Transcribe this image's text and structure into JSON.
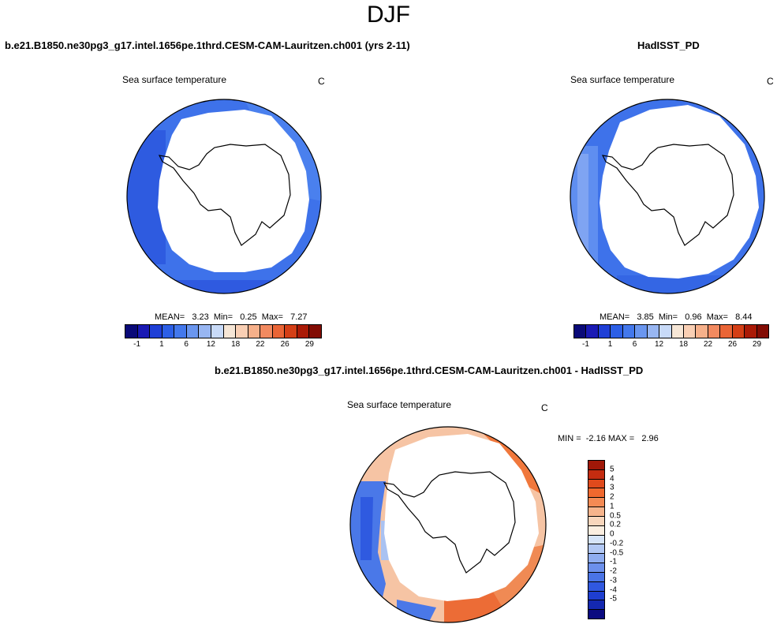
{
  "figure": {
    "title": "DJF"
  },
  "panels": {
    "model": {
      "case_title": "b.e21.B1850.ne30pg3_g17.intel.1656pe.1thrd.CESM-CAM-Lauritzen.ch001 (yrs 2-11)",
      "variable": "Sea surface temperature",
      "units": "C",
      "stats": "MEAN=   3.23  Min=   0.25  Max=   7.27"
    },
    "obs": {
      "case_title": "HadISST_PD",
      "variable": "Sea surface temperature",
      "units": "C",
      "stats": "MEAN=   3.85  Min=   0.96  Max=   8.44"
    },
    "diff": {
      "case_title": "b.e21.B1850.ne30pg3_g17.intel.1656pe.1thrd.CESM-CAM-Lauritzen.ch001 - HadISST_PD",
      "variable": "Sea surface temperature",
      "units": "C",
      "stats": "MIN =  -2.16 MAX =   2.96"
    }
  },
  "colorbars": {
    "sst": {
      "colors": [
        "#0a0a78",
        "#1a1ab4",
        "#1f3fd6",
        "#2c5fe6",
        "#4378ec",
        "#6a96ef",
        "#98b6f2",
        "#c8daf8",
        "#f6e6d6",
        "#f9cfb4",
        "#f6b08a",
        "#f28a60",
        "#ea6536",
        "#d43f16",
        "#aa1a06",
        "#820c04"
      ],
      "tick_labels": [
        "-1",
        "1",
        "6",
        "12",
        "18",
        "22",
        "26",
        "29"
      ]
    },
    "diff": {
      "colors": [
        "#a01808",
        "#c42c10",
        "#e04a1c",
        "#f0682e",
        "#f48a54",
        "#f6b48c",
        "#f8d6bc",
        "#fbeee0",
        "#d6e4f8",
        "#b2c8f4",
        "#8fadf0",
        "#6c90ec",
        "#4a74e6",
        "#3058e0",
        "#1e3ed0",
        "#1428b0",
        "#0a0a80"
      ],
      "tick_labels": [
        "5",
        "4",
        "3",
        "2",
        "1",
        "0.5",
        "0.2",
        "0",
        "-0.2",
        "-0.5",
        "-1",
        "-2",
        "-3",
        "-4",
        "-5"
      ]
    }
  }
}
